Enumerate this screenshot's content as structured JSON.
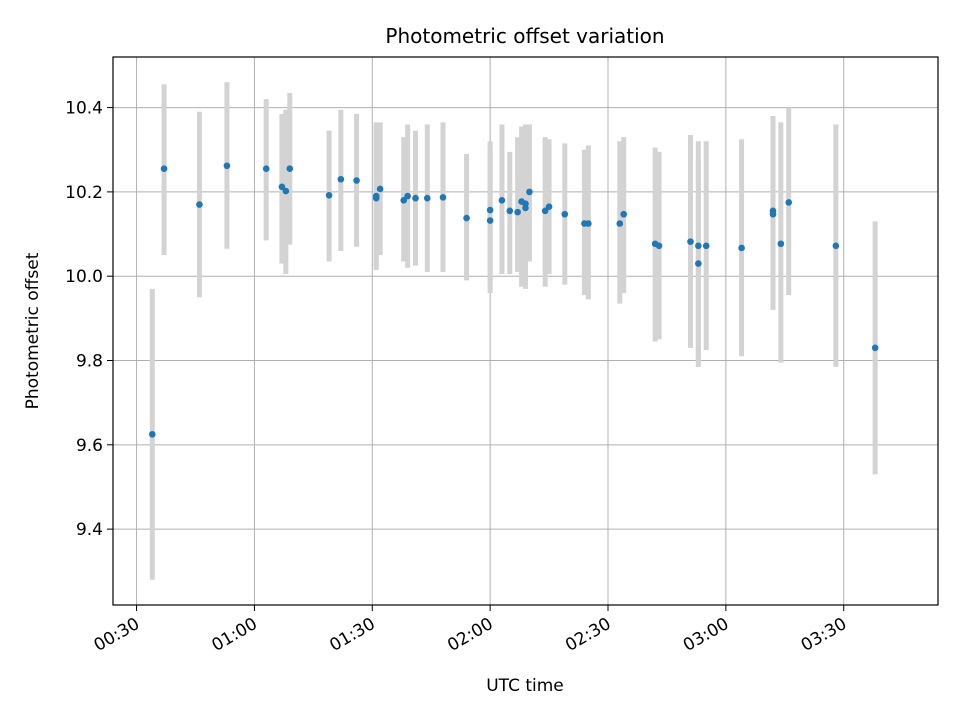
{
  "chart_data": {
    "type": "scatter",
    "title": "Photometric offset variation",
    "xlabel": "UTC time",
    "ylabel": "Photometric offset",
    "x_unit": "UTC time (HH:MM)",
    "xlim": [
      "00:24",
      "03:54"
    ],
    "ylim": [
      9.22,
      10.52
    ],
    "x_ticks": [
      "00:30",
      "01:00",
      "01:30",
      "02:00",
      "02:30",
      "03:00",
      "03:30"
    ],
    "y_ticks": [
      9.4,
      9.6,
      9.8,
      10.0,
      10.2,
      10.4
    ],
    "y_tick_labels": [
      "9.4",
      "9.6",
      "9.8",
      "10.0",
      "10.2",
      "10.4"
    ],
    "grid": true,
    "colors": {
      "points": "#1f77b4",
      "error_bars": "#d3d3d3",
      "grid": "#b0b0b0",
      "axes": "#000000"
    },
    "series": [
      {
        "x": [
          "00:34",
          "00:37",
          "00:46",
          "00:53",
          "01:03",
          "01:07",
          "01:08",
          "01:09",
          "01:19",
          "01:22",
          "01:26",
          "01:31",
          "01:31",
          "01:32",
          "01:38",
          "01:39",
          "01:41",
          "01:44",
          "01:48",
          "01:54",
          "02:00",
          "02:00",
          "02:03",
          "02:05",
          "02:07",
          "02:08",
          "02:09",
          "02:09",
          "02:10",
          "02:14",
          "02:15",
          "02:19",
          "02:24",
          "02:25",
          "02:33",
          "02:34",
          "02:42",
          "02:43",
          "02:51",
          "02:53",
          "02:53",
          "02:55",
          "03:04",
          "03:12",
          "03:12",
          "03:14",
          "03:16",
          "03:28",
          "03:38"
        ],
        "y": [
          9.625,
          10.255,
          10.17,
          10.262,
          10.255,
          10.212,
          10.202,
          10.255,
          10.192,
          10.23,
          10.227,
          10.19,
          10.185,
          10.207,
          10.18,
          10.19,
          10.185,
          10.185,
          10.187,
          10.138,
          10.132,
          10.157,
          10.18,
          10.155,
          10.152,
          10.177,
          10.162,
          10.172,
          10.2,
          10.155,
          10.165,
          10.147,
          10.125,
          10.125,
          10.125,
          10.147,
          10.077,
          10.072,
          10.082,
          10.03,
          10.072,
          10.072,
          10.067,
          10.155,
          10.147,
          10.077,
          10.175,
          10.072,
          9.83
        ],
        "err_low": [
          9.28,
          10.05,
          9.95,
          10.065,
          10.085,
          10.03,
          10.005,
          10.075,
          10.035,
          10.06,
          10.07,
          10.015,
          10.025,
          10.05,
          10.035,
          10.02,
          10.025,
          10.01,
          10.01,
          9.99,
          9.96,
          9.985,
          10.005,
          10.005,
          10.01,
          9.975,
          9.97,
          9.975,
          10.035,
          9.975,
          10.005,
          9.98,
          9.955,
          9.945,
          9.935,
          9.96,
          9.845,
          9.85,
          9.83,
          9.785,
          9.795,
          9.825,
          9.81,
          9.935,
          9.92,
          9.795,
          9.955,
          9.785,
          9.53
        ],
        "err_high": [
          9.97,
          10.455,
          10.39,
          10.46,
          10.42,
          10.385,
          10.395,
          10.435,
          10.345,
          10.395,
          10.385,
          10.365,
          10.36,
          10.365,
          10.33,
          10.36,
          10.345,
          10.36,
          10.365,
          10.29,
          10.3,
          10.32,
          10.36,
          10.295,
          10.33,
          10.355,
          10.355,
          10.36,
          10.36,
          10.33,
          10.325,
          10.315,
          10.3,
          10.31,
          10.32,
          10.33,
          10.305,
          10.295,
          10.335,
          10.275,
          10.32,
          10.32,
          10.325,
          10.375,
          10.38,
          10.365,
          10.4,
          10.36,
          10.13
        ]
      }
    ]
  }
}
